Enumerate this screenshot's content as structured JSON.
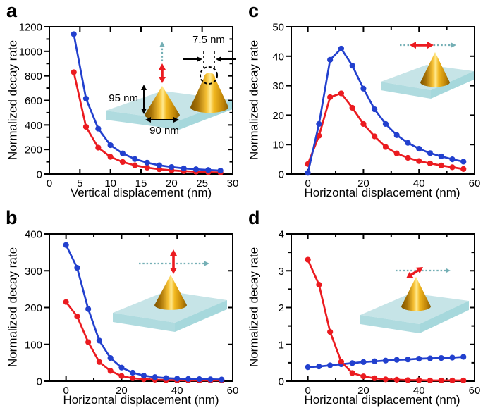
{
  "figure": {
    "background": "#ffffff",
    "colors": {
      "blue_series": "#2240CE",
      "red_series": "#EB1B20",
      "teal_arrow": "#74AFB5",
      "slab_top": "#C6E4E7",
      "slab_front": "#AFDBDF",
      "slab_side": "#A6D8DC",
      "axis": "#000000"
    },
    "panel_order": [
      "a",
      "b",
      "c",
      "d"
    ]
  },
  "chart_data": [
    {
      "id": "a",
      "panel_label": "a",
      "type": "line",
      "xlabel": "Vertical displacement (nm)",
      "ylabel": "Normalized decay rate",
      "xlim": [
        0,
        30
      ],
      "ylim": [
        0,
        1200
      ],
      "xticks": [
        0,
        5,
        10,
        15,
        20,
        25,
        30
      ],
      "xtick_minor_step": null,
      "yticks": [
        0,
        200,
        400,
        600,
        800,
        1000,
        1200
      ],
      "ytick_minor_step": 100,
      "x": [
        4,
        6,
        8,
        10,
        12,
        14,
        16,
        18,
        20,
        22,
        24,
        26,
        28
      ],
      "series": [
        {
          "name": "red",
          "color": "#EB1B20",
          "values": [
            830,
            385,
            215,
            140,
            98,
            71,
            52,
            39,
            30,
            24,
            19,
            15,
            12
          ]
        },
        {
          "name": "blue",
          "color": "#2240CE",
          "values": [
            1140,
            615,
            370,
            235,
            168,
            122,
            93,
            71,
            57,
            46,
            39,
            33,
            28
          ]
        }
      ],
      "inset": {
        "description": "gold nanocone on slab, vertical dipole arrow with dashed vertical displacement arrow; zoomed tip with dashed circle",
        "labels": [
          {
            "text": "95 nm"
          },
          {
            "text": "90 nm"
          },
          {
            "text": "7.5 nm"
          }
        ]
      }
    },
    {
      "id": "b",
      "panel_label": "b",
      "type": "line",
      "xlabel": "Horizontal displacement (nm)",
      "ylabel": "Normalized decay rate",
      "xlim": [
        -6,
        60
      ],
      "ylim": [
        0,
        400
      ],
      "xticks": [
        0,
        20,
        40,
        60
      ],
      "xtick_minor_step": 10,
      "yticks": [
        0,
        100,
        200,
        300,
        400
      ],
      "ytick_minor_step": null,
      "x": [
        0,
        4,
        8,
        12,
        16,
        20,
        24,
        28,
        32,
        36,
        40,
        44,
        48,
        52,
        56
      ],
      "series": [
        {
          "name": "red",
          "color": "#EB1B20",
          "values": [
            215,
            176,
            106,
            52,
            28,
            14,
            8,
            5.5,
            4,
            3,
            2.5,
            2.2,
            2,
            2,
            2
          ]
        },
        {
          "name": "blue",
          "color": "#2240CE",
          "values": [
            370,
            308,
            196,
            110,
            63,
            37,
            23,
            15,
            11,
            8.5,
            7,
            6,
            5.5,
            5,
            4.5
          ]
        }
      ],
      "inset": {
        "description": "gold nanocone on slab, vertical dipole arrow with dashed horizontal displacement arrow",
        "labels": []
      }
    },
    {
      "id": "c",
      "panel_label": "c",
      "type": "line",
      "xlabel": "Horizontal displacement (nm)",
      "ylabel": "Normalized decay rate",
      "xlim": [
        -6,
        60
      ],
      "ylim": [
        0,
        50
      ],
      "xticks": [
        0,
        20,
        40,
        60
      ],
      "xtick_minor_step": 10,
      "yticks": [
        0,
        10,
        20,
        30,
        40,
        50
      ],
      "ytick_minor_step": null,
      "x": [
        0,
        4,
        8,
        12,
        16,
        20,
        24,
        28,
        32,
        36,
        40,
        44,
        48,
        52,
        56
      ],
      "series": [
        {
          "name": "red",
          "color": "#EB1B20",
          "values": [
            3.4,
            13,
            26.1,
            27.4,
            22.5,
            17,
            12.8,
            9.2,
            7,
            5.5,
            4.4,
            3.6,
            2.9,
            2.3,
            1.7
          ]
        },
        {
          "name": "blue",
          "color": "#2240CE",
          "values": [
            0.4,
            17,
            38.8,
            42.6,
            36.8,
            29,
            22,
            17,
            13.2,
            10.6,
            8.6,
            7.1,
            6,
            5,
            4.2
          ]
        }
      ],
      "inset": {
        "description": "gold nanocone on slab, horizontal dipole arrow with dashed horizontal displacement arrow",
        "labels": []
      }
    },
    {
      "id": "d",
      "panel_label": "d",
      "type": "line",
      "xlabel": "Horizontal displacement (nm)",
      "ylabel": "Normalized decay rate",
      "xlim": [
        -6,
        60
      ],
      "ylim": [
        0,
        4
      ],
      "xticks": [
        0,
        20,
        40,
        60
      ],
      "xtick_minor_step": 10,
      "yticks": [
        0,
        1,
        2,
        3,
        4
      ],
      "ytick_minor_step": 0.5,
      "x": [
        0,
        4,
        8,
        12,
        16,
        20,
        24,
        28,
        32,
        36,
        40,
        44,
        48,
        52,
        56
      ],
      "series": [
        {
          "name": "blue",
          "color": "#2240CE",
          "values": [
            0.38,
            0.4,
            0.43,
            0.46,
            0.49,
            0.52,
            0.54,
            0.56,
            0.58,
            0.59,
            0.61,
            0.62,
            0.63,
            0.64,
            0.66
          ]
        },
        {
          "name": "red",
          "color": "#EB1B20",
          "values": [
            3.3,
            2.62,
            1.34,
            0.53,
            0.22,
            0.13,
            0.08,
            0.05,
            0.04,
            0.03,
            0.03,
            0.02,
            0.02,
            0.02,
            0.02
          ]
        }
      ],
      "inset": {
        "description": "gold nanocone on slab, tilted dipole arrow with dashed horizontal displacement arrow",
        "labels": []
      }
    }
  ]
}
